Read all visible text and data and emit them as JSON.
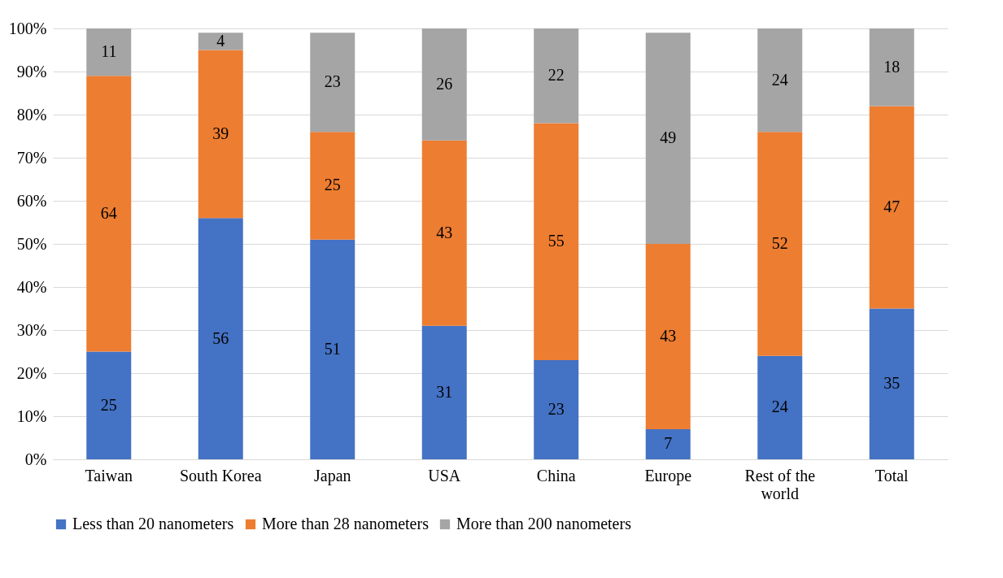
{
  "chart_data": {
    "type": "bar",
    "stacked": true,
    "categories": [
      "Taiwan",
      "South Korea",
      "Japan",
      "USA",
      "China",
      "Europe",
      "Rest of the world",
      "Total"
    ],
    "series": [
      {
        "name": "Less than 20 nanometers",
        "color": "#4472c4",
        "values": [
          25,
          56,
          51,
          31,
          23,
          7,
          24,
          35
        ]
      },
      {
        "name": "More than 28 nanometers",
        "color": "#ed7d31",
        "values": [
          64,
          39,
          25,
          43,
          55,
          43,
          52,
          47
        ]
      },
      {
        "name": "More than 200 nanometers",
        "color": "#a5a5a5",
        "values": [
          11,
          4,
          23,
          26,
          22,
          49,
          24,
          18
        ]
      }
    ],
    "ylim": [
      0,
      100
    ],
    "yticks": [
      {
        "value": 0,
        "label": "0%"
      },
      {
        "value": 10,
        "label": "10%"
      },
      {
        "value": 20,
        "label": "20%"
      },
      {
        "value": 30,
        "label": "30%"
      },
      {
        "value": 40,
        "label": "40%"
      },
      {
        "value": 50,
        "label": "50%"
      },
      {
        "value": 60,
        "label": "60%"
      },
      {
        "value": 70,
        "label": "70%"
      },
      {
        "value": 80,
        "label": "80%"
      },
      {
        "value": 90,
        "label": "90%"
      },
      {
        "value": 100,
        "label": "100%"
      }
    ],
    "grid": "y",
    "legend": "bottom",
    "data_labels": true
  }
}
